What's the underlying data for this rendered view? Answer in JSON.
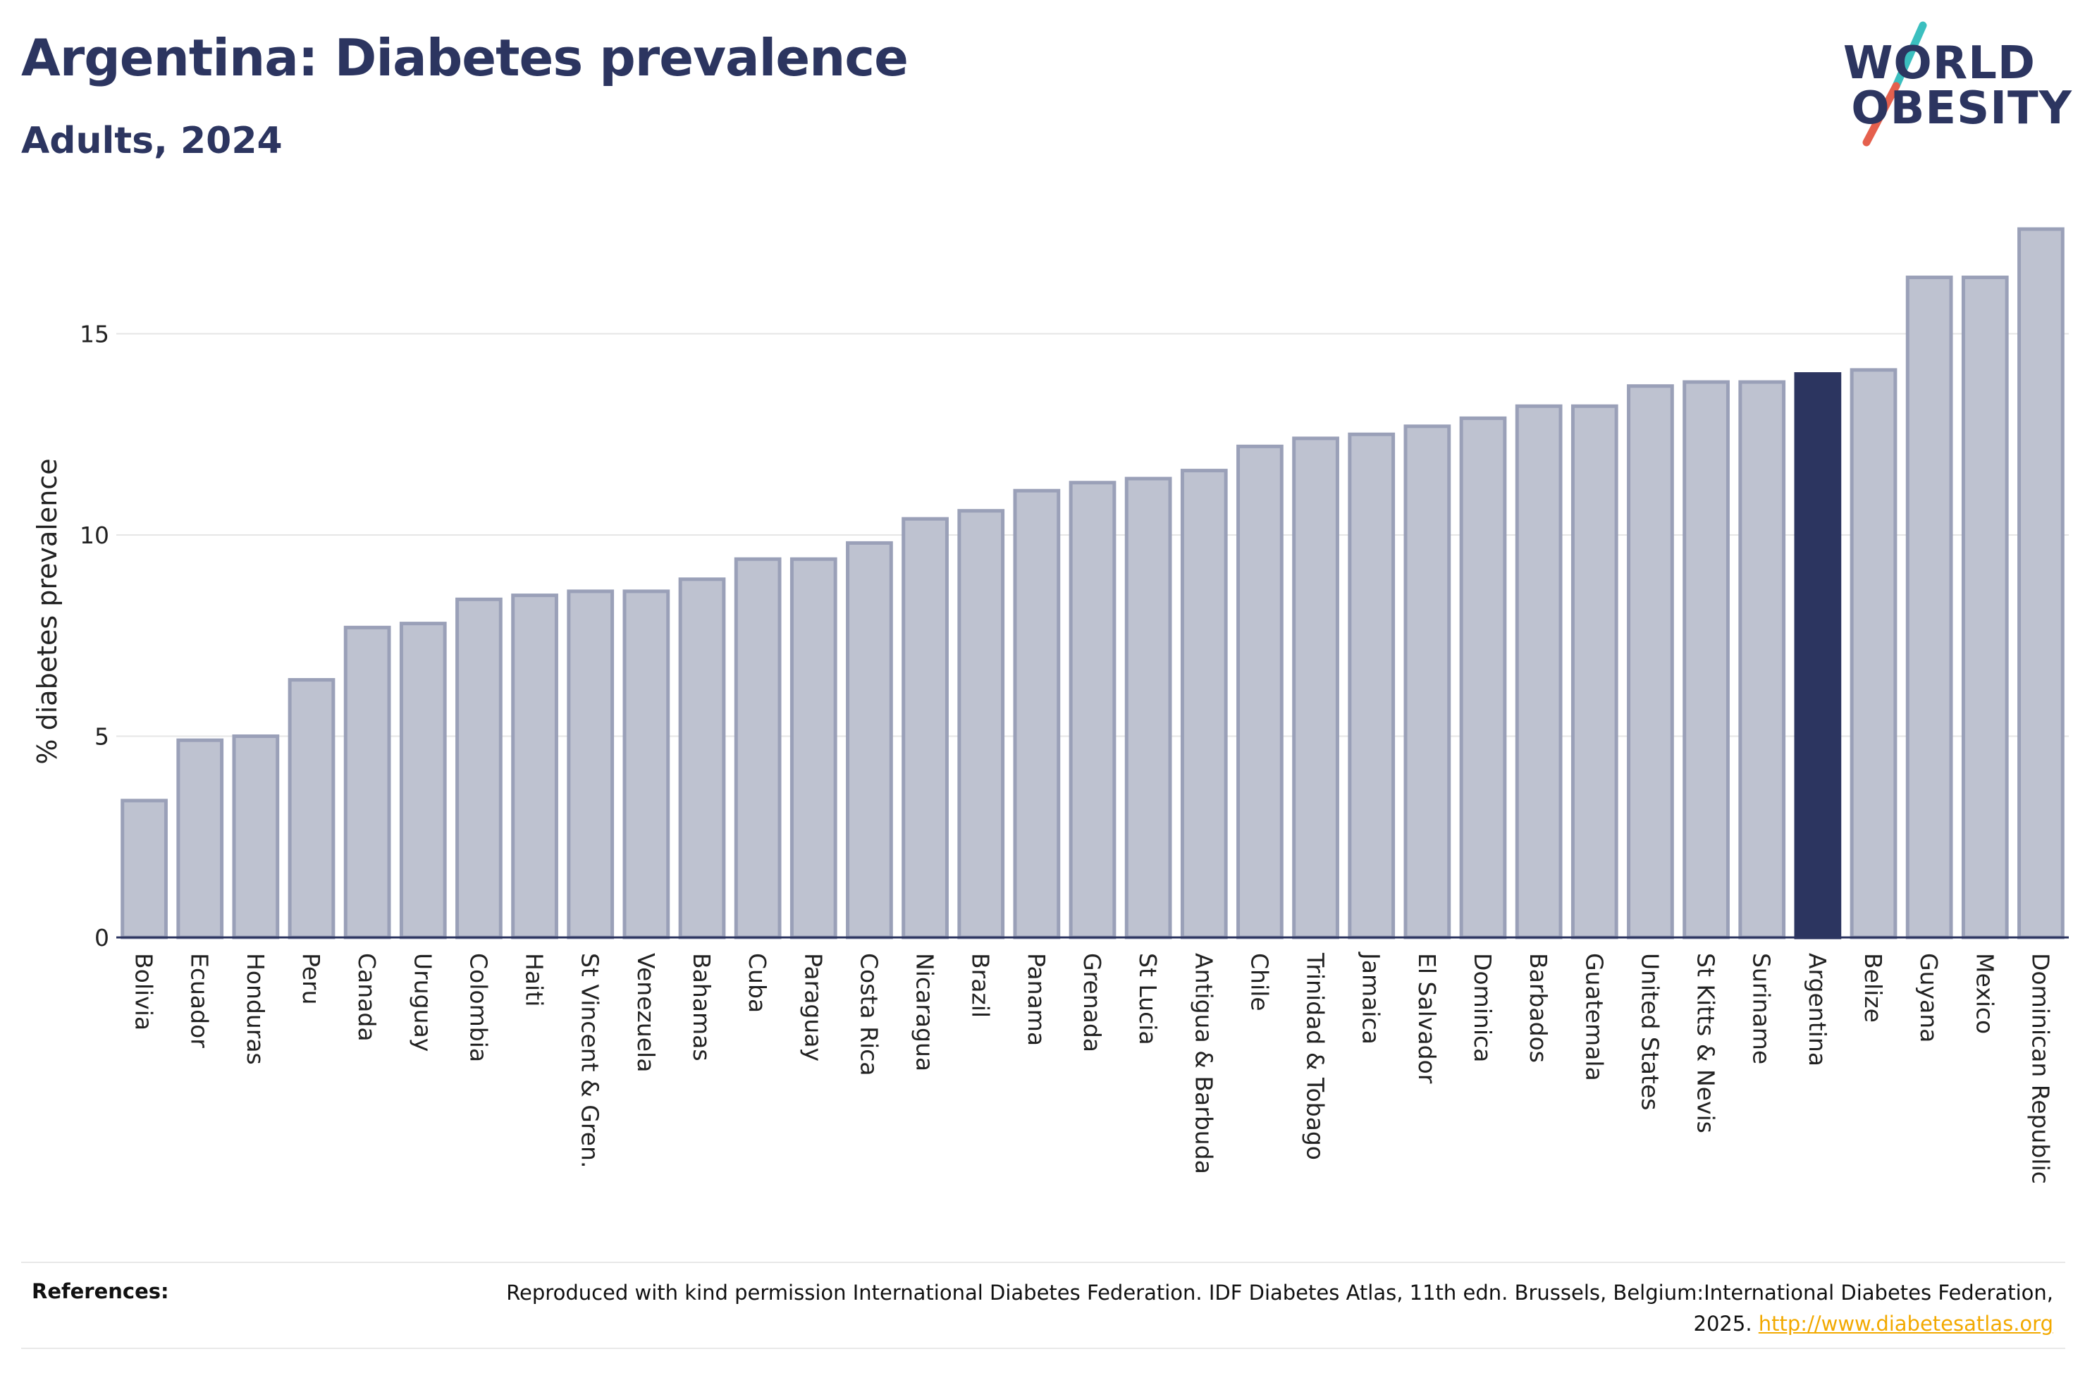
{
  "header": {
    "title": "Argentina: Diabetes prevalence",
    "subtitle": "Adults, 2024"
  },
  "logo": {
    "line1": "WORLD",
    "line2": "OBESITY",
    "slash_colors": [
      "#3bbfbf",
      "#e5604d"
    ]
  },
  "chart_data": {
    "type": "bar",
    "title": "Argentina: Diabetes prevalence",
    "subtitle": "Adults, 2024",
    "ylabel": "% diabetes prevalence",
    "xlabel": "",
    "ylim": [
      0,
      17.6
    ],
    "yticks": [
      0,
      5,
      10,
      15
    ],
    "grid": true,
    "highlight": "Argentina",
    "colors": {
      "bar": "#bec2d0",
      "bar_edge": "#9aa0b8",
      "highlight": "#2c3560",
      "axis": "#2c3560",
      "grid": "#e6e6e6"
    },
    "categories": [
      "Bolivia",
      "Ecuador",
      "Honduras",
      "Peru",
      "Canada",
      "Uruguay",
      "Colombia",
      "Haiti",
      "St Vincent & Gren.",
      "Venezuela",
      "Bahamas",
      "Cuba",
      "Paraguay",
      "Costa Rica",
      "Nicaragua",
      "Brazil",
      "Panama",
      "Grenada",
      "St Lucia",
      "Antigua & Barbuda",
      "Chile",
      "Trinidad & Tobago",
      "Jamaica",
      "El Salvador",
      "Dominica",
      "Barbados",
      "Guatemala",
      "United States",
      "St Kitts & Nevis",
      "Suriname",
      "Argentina",
      "Belize",
      "Guyana",
      "Mexico",
      "Dominican Republic"
    ],
    "values": [
      3.4,
      4.9,
      5.0,
      6.4,
      7.7,
      7.8,
      8.4,
      8.5,
      8.6,
      8.6,
      8.9,
      9.4,
      9.4,
      9.8,
      10.4,
      10.6,
      11.1,
      11.3,
      11.4,
      11.6,
      12.2,
      12.4,
      12.5,
      12.7,
      12.9,
      13.2,
      13.2,
      13.7,
      13.8,
      13.8,
      14.0,
      14.1,
      16.4,
      16.4,
      17.6
    ]
  },
  "references": {
    "heading": "References:",
    "text": "Reproduced with kind permission International Diabetes Federation. IDF Diabetes Atlas, 11th edn. Brussels, Belgium:International Diabetes Federation, 2025. ",
    "link": "http://www.diabetesatlas.org"
  }
}
